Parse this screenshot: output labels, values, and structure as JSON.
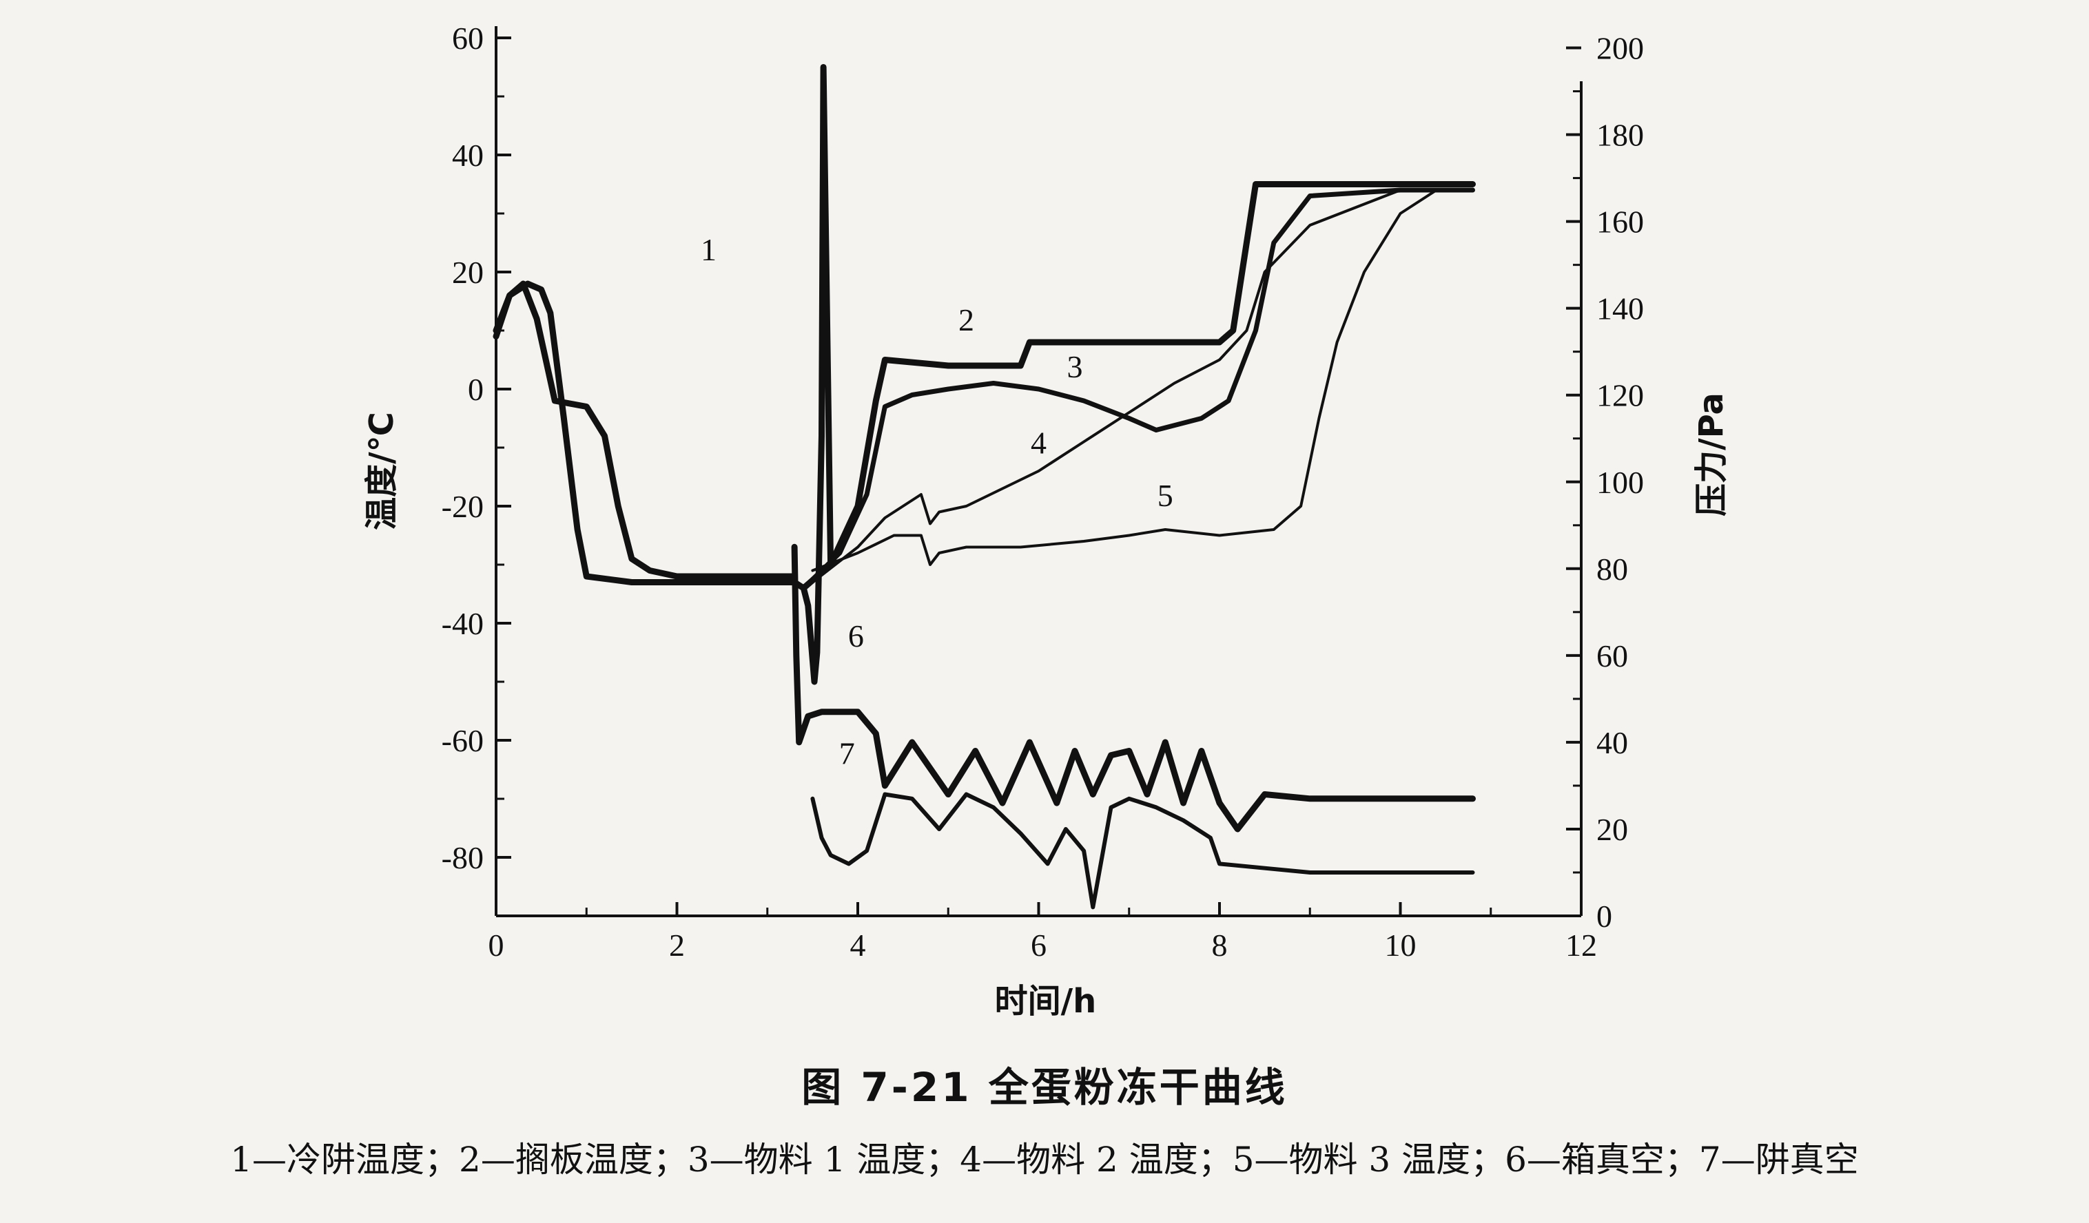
{
  "figure": {
    "title": "图 7-21   全蛋粉冻干曲线",
    "legend_text": "1—冷阱温度；2—搁板温度；3—物料 1 温度；4—物料 2 温度；5—物料 3 温度；6—箱真空；7—阱真空"
  },
  "chart_data": {
    "type": "line",
    "xlabel": "时间/h",
    "ylabel": "温度/℃",
    "y2label": "压力/Pa",
    "xlim": [
      0,
      12
    ],
    "ylim": [
      -90,
      62
    ],
    "y2lim": [
      0,
      205
    ],
    "xticks": [
      0,
      2,
      4,
      6,
      8,
      10,
      12
    ],
    "yticks": [
      -80,
      -60,
      -40,
      -20,
      0,
      20,
      40,
      60
    ],
    "y2ticks": [
      0,
      20,
      40,
      60,
      80,
      100,
      120,
      140,
      160,
      180,
      200
    ],
    "grid": false,
    "series": [
      {
        "name": "1",
        "axis": "left",
        "x": [
          0.0,
          0.15,
          0.35,
          0.5,
          0.6,
          0.75,
          0.9,
          1.0,
          1.5,
          2.0,
          2.5,
          3.0,
          3.3,
          3.4,
          3.45,
          3.52,
          3.55,
          3.6,
          3.62,
          3.7
        ],
        "y": [
          9,
          16,
          18,
          17,
          13,
          -5,
          -24,
          -32,
          -33,
          -33,
          -33,
          -33,
          -33,
          -34,
          -37,
          -50,
          -45,
          -8,
          55,
          -30
        ]
      },
      {
        "name": "2",
        "axis": "left",
        "x": [
          3.4,
          3.7,
          4.0,
          4.2,
          4.3,
          5.0,
          5.8,
          5.9,
          6.5,
          7.2,
          8.0,
          8.15,
          8.4,
          8.6,
          9.0,
          10.0,
          10.8
        ],
        "y": [
          -34,
          -30,
          -20,
          -2,
          5,
          4,
          4,
          8,
          8,
          8,
          8,
          10,
          35,
          35,
          35,
          35,
          35
        ],
        "label": "2",
        "label_x": 5.2,
        "label_y": 10
      },
      {
        "name": "3",
        "axis": "left",
        "x": [
          3.4,
          3.8,
          4.1,
          4.3,
          4.6,
          5.0,
          5.5,
          6.0,
          6.5,
          7.0,
          7.3,
          7.8,
          8.1,
          8.4,
          8.6,
          9.0,
          10.0,
          10.8
        ],
        "y": [
          -34,
          -28,
          -18,
          -3,
          -1,
          0,
          1,
          0,
          -2,
          -5,
          -7,
          -5,
          -2,
          10,
          25,
          33,
          34,
          34
        ],
        "label": "3",
        "label_x": 6.4,
        "label_y": 2
      },
      {
        "name": "4",
        "axis": "left",
        "x": [
          3.5,
          4.0,
          4.3,
          4.7,
          4.8,
          4.9,
          5.2,
          5.6,
          6.0,
          6.5,
          7.0,
          7.5,
          8.0,
          8.3,
          8.5,
          9.0,
          10.0,
          10.8
        ],
        "y": [
          -33,
          -27,
          -22,
          -18,
          -23,
          -21,
          -20,
          -17,
          -14,
          -9,
          -4,
          1,
          5,
          10,
          20,
          28,
          34,
          34
        ],
        "label": "4",
        "label_x": 6.0,
        "label_y": -11
      },
      {
        "name": "5",
        "axis": "left",
        "x": [
          3.5,
          4.0,
          4.4,
          4.7,
          4.8,
          4.9,
          5.2,
          5.8,
          6.5,
          7.0,
          7.4,
          8.0,
          8.6,
          8.9,
          9.1,
          9.3,
          9.6,
          10.0,
          10.4,
          10.8
        ],
        "y": [
          -31,
          -28,
          -25,
          -25,
          -30,
          -28,
          -27,
          -27,
          -26,
          -25,
          -24,
          -25,
          -24,
          -20,
          -5,
          8,
          20,
          30,
          34,
          34
        ],
        "label": "5",
        "label_x": 7.4,
        "label_y": -20
      },
      {
        "name": "6",
        "axis": "right",
        "x": [
          3.3,
          3.32,
          3.35,
          3.45,
          3.6,
          4.0,
          4.2,
          4.3,
          4.6,
          5.0,
          5.3,
          5.6,
          5.9,
          6.2,
          6.4,
          6.6,
          6.8,
          7.0,
          7.2,
          7.4,
          7.6,
          7.8,
          8.0,
          8.2,
          8.5,
          9.0,
          10.0,
          10.8
        ],
        "y": [
          85,
          60,
          40,
          46,
          47,
          47,
          42,
          30,
          40,
          28,
          38,
          26,
          40,
          26,
          38,
          28,
          37,
          38,
          28,
          40,
          26,
          38,
          26,
          20,
          28,
          27,
          27,
          27
        ],
        "label": "6",
        "label_x": 3.98,
        "label_y2": 62
      },
      {
        "name": "7",
        "axis": "right",
        "x": [
          3.5,
          3.6,
          3.7,
          3.9,
          4.1,
          4.3,
          4.6,
          4.9,
          5.2,
          5.5,
          5.8,
          6.1,
          6.3,
          6.5,
          6.6,
          6.8,
          7.0,
          7.3,
          7.6,
          7.9,
          8.0,
          8.5,
          9.0,
          10.0,
          10.8
        ],
        "y": [
          27,
          18,
          14,
          12,
          15,
          28,
          27,
          20,
          28,
          25,
          19,
          12,
          20,
          15,
          2,
          25,
          27,
          25,
          22,
          18,
          12,
          11,
          10,
          10,
          10
        ],
        "label": "7",
        "label_x": 3.88,
        "label_y2": 35
      },
      {
        "name": "1",
        "axis": "left",
        "x": [
          0.0,
          0.15,
          0.3,
          0.45,
          0.65,
          1.0,
          1.2,
          1.35,
          1.5,
          1.7,
          2.0,
          2.5,
          3.0,
          3.3
        ],
        "y": [
          10,
          16,
          18,
          12,
          -2,
          -3,
          -8,
          -20,
          -29,
          -31,
          -32,
          -32,
          -32,
          -32
        ],
        "label": "1",
        "label_x": 2.35,
        "label_y": 22
      }
    ]
  }
}
